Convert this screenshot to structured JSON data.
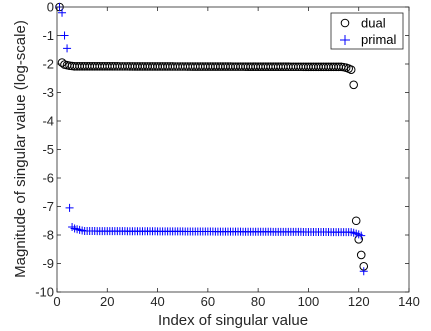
{
  "chart_data": {
    "type": "scatter",
    "title": "",
    "xlabel": "Index of singular value",
    "ylabel": "Magnitude of singular value (log-scale)",
    "xlim": [
      0,
      140
    ],
    "ylim": [
      -10,
      0
    ],
    "xticks": [
      0,
      20,
      40,
      60,
      80,
      100,
      120,
      140
    ],
    "yticks": [
      0,
      -1,
      -2,
      -3,
      -4,
      -5,
      -6,
      -7,
      -8,
      -9,
      -10
    ],
    "grid": false,
    "legend_position": "top-right",
    "series": [
      {
        "name": "dual",
        "marker": "circle",
        "color": "#000000",
        "head": [
          [
            1,
            0.0
          ],
          [
            2,
            -1.95
          ],
          [
            3,
            -2.02
          ],
          [
            4,
            -2.04
          ],
          [
            5,
            -2.06
          ],
          [
            6,
            -2.07
          ],
          [
            7,
            -2.08
          ],
          [
            8,
            -2.08
          ]
        ],
        "plateau": {
          "x_from": 9,
          "x_to": 113,
          "y_start": -2.08,
          "y_end": -2.1
        },
        "tail": [
          [
            114,
            -2.11
          ],
          [
            115,
            -2.13
          ],
          [
            116,
            -2.16
          ],
          [
            117,
            -2.2
          ],
          [
            118,
            -2.73
          ],
          [
            119,
            -7.5
          ],
          [
            120,
            -8.15
          ],
          [
            121,
            -8.7
          ],
          [
            122,
            -9.1
          ]
        ]
      },
      {
        "name": "primal",
        "marker": "plus",
        "color": "#0000ff",
        "head": [
          [
            1,
            0.0
          ],
          [
            2,
            -0.2
          ],
          [
            3,
            -1.0
          ],
          [
            4,
            -1.45
          ],
          [
            5,
            -7.05
          ],
          [
            6,
            -7.72
          ],
          [
            7,
            -7.77
          ],
          [
            8,
            -7.8
          ],
          [
            9,
            -7.82
          ],
          [
            10,
            -7.84
          ]
        ],
        "plateau": {
          "x_from": 11,
          "x_to": 117,
          "y_start": -7.86,
          "y_end": -7.9
        },
        "tail": [
          [
            118,
            -7.92
          ],
          [
            119,
            -7.95
          ],
          [
            120,
            -7.98
          ],
          [
            121,
            -8.02
          ],
          [
            122,
            -9.27
          ]
        ]
      }
    ]
  }
}
